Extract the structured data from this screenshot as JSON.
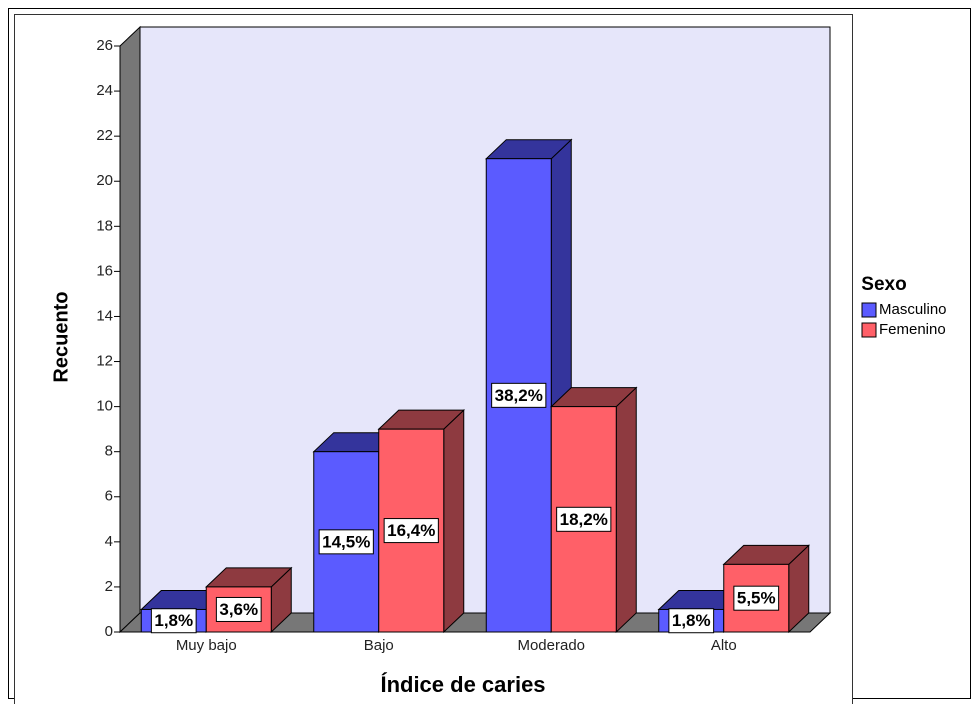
{
  "chart_data": {
    "type": "bar3d",
    "x_label": "Índice de caries",
    "y_label": "Recuento",
    "legend_title": "Sexo",
    "categories": [
      "Muy bajo",
      "Bajo",
      "Moderado",
      "Alto"
    ],
    "series": [
      {
        "name": "Masculino",
        "color": "#5b5bff",
        "dark": "#34349c",
        "values": [
          1,
          8,
          21,
          1
        ],
        "percent_labels": [
          "1,8%",
          "14,5%",
          "38,2%",
          "1,8%"
        ]
      },
      {
        "name": "Femenino",
        "color": "#ff6068",
        "dark": "#8e3a40",
        "values": [
          2,
          9,
          10,
          3
        ],
        "percent_labels": [
          "3,6%",
          "16,4%",
          "18,2%",
          "5,5%"
        ]
      }
    ],
    "ylim": [
      0,
      26
    ],
    "yticks": [
      0,
      2,
      4,
      6,
      8,
      10,
      12,
      14,
      16,
      18,
      20,
      22,
      24,
      26
    ],
    "legend": "right"
  }
}
